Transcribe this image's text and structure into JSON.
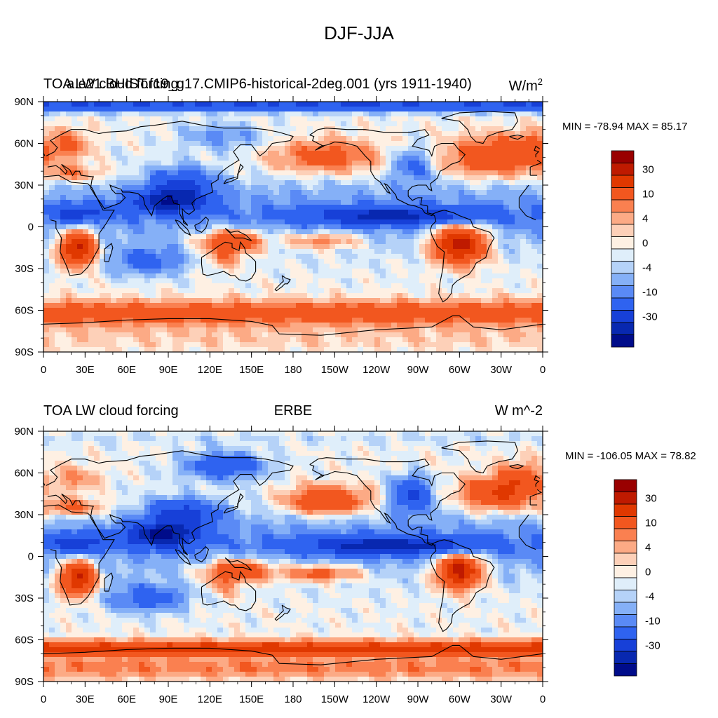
{
  "figure": {
    "title": "DJF-JJA"
  },
  "chart_data": [
    {
      "type": "heatmap",
      "panel_label": "a.e21.BHIST.f19_g17.CMIP6-historical-2deg.001 (yrs 1911-1940)",
      "title_left": "TOA LW cloud forcing",
      "units_base": "W/m",
      "units_power": "2",
      "stats_text": "MIN = -78.94 MAX =  85.17",
      "min": -78.94,
      "max": 85.17,
      "x_ticks": [
        "0",
        "30E",
        "60E",
        "90E",
        "120E",
        "150E",
        "180",
        "150W",
        "120W",
        "90W",
        "60W",
        "30W",
        "0"
      ],
      "y_ticks": [
        "90N",
        "60N",
        "30N",
        "0",
        "30S",
        "60S",
        "90S"
      ],
      "colorbar_labels": [
        "30",
        "10",
        "4",
        "0",
        "-4",
        "-10",
        "-30"
      ],
      "colorbar_colors": [
        "#990000",
        "#bf1a00",
        "#e03800",
        "#f2571f",
        "#fa8050",
        "#fcaa85",
        "#fdd0b8",
        "#fef0e3",
        "#dfeefa",
        "#b5d2f8",
        "#85b0f7",
        "#5a8af5",
        "#2f63f0",
        "#1740d8",
        "#0828b0",
        "#000c8a"
      ],
      "ocean_background": "#4a7cf2",
      "features": [
        {
          "name": "southern-ocean-band",
          "lat": -62,
          "lon": 180,
          "value": 14,
          "sx": 360,
          "sy": 9
        },
        {
          "name": "antarctica",
          "lat": -80,
          "lon": 180,
          "value": 3,
          "sx": 360,
          "sy": 10
        },
        {
          "name": "north-pacific-storm-track",
          "lat": 50,
          "lon": 205,
          "value": 14,
          "sx": 40,
          "sy": 12
        },
        {
          "name": "north-atlantic-storm-track",
          "lat": 50,
          "lon": 320,
          "value": 18,
          "sx": 28,
          "sy": 14
        },
        {
          "name": "north-atlantic-east",
          "lat": 55,
          "lon": 350,
          "value": 14,
          "sx": 18,
          "sy": 12
        },
        {
          "name": "europe",
          "lat": 58,
          "lon": 20,
          "value": 10,
          "sx": 14,
          "sy": 12
        },
        {
          "name": "mediterranean",
          "lat": 38,
          "lon": 20,
          "value": 10,
          "sx": 25,
          "sy": 6
        },
        {
          "name": "tibet-east-asia",
          "lat": 30,
          "lon": 100,
          "value": -18,
          "sx": 22,
          "sy": 12
        },
        {
          "name": "itcz-eastern-pacific",
          "lat": 8,
          "lon": 250,
          "value": -28,
          "sx": 60,
          "sy": 6
        },
        {
          "name": "indian-monsoon",
          "lat": 18,
          "lon": 90,
          "value": -30,
          "sx": 25,
          "sy": 8
        },
        {
          "name": "africa-sahel",
          "lat": 10,
          "lon": 25,
          "value": -20,
          "sx": 18,
          "sy": 6
        },
        {
          "name": "southern-africa",
          "lat": -15,
          "lon": 25,
          "value": 36,
          "sx": 12,
          "sy": 12
        },
        {
          "name": "amazon",
          "lat": -12,
          "lon": 300,
          "value": 38,
          "sx": 18,
          "sy": 13
        },
        {
          "name": "maritime-continent",
          "lat": -10,
          "lon": 135,
          "value": 22,
          "sx": 22,
          "sy": 8
        },
        {
          "name": "south-pacific-convergence",
          "lat": -10,
          "lon": 200,
          "value": 12,
          "sx": 28,
          "sy": 6
        },
        {
          "name": "australia",
          "lat": -22,
          "lon": 130,
          "value": 8,
          "sx": 14,
          "sy": 8
        },
        {
          "name": "southern-indian-ocean",
          "lat": -25,
          "lon": 75,
          "value": -12,
          "sx": 28,
          "sy": 10
        },
        {
          "name": "arctic-cap",
          "lat": 87,
          "lon": 180,
          "value": -22,
          "sx": 360,
          "sy": 4
        },
        {
          "name": "east-siberia",
          "lat": 65,
          "lon": 130,
          "value": -8,
          "sx": 30,
          "sy": 10
        },
        {
          "name": "north-america-interior",
          "lat": 45,
          "lon": 265,
          "value": -12,
          "sx": 14,
          "sy": 12
        }
      ]
    },
    {
      "type": "heatmap",
      "panel_label": "ERBE",
      "title_left": "TOA LW cloud forcing",
      "units_text": "W m^-2",
      "stats_text": "MIN = -106.05 MAX =  78.82",
      "min": -106.05,
      "max": 78.82,
      "x_ticks": [
        "0",
        "30E",
        "60E",
        "90E",
        "120E",
        "150E",
        "180",
        "150W",
        "120W",
        "90W",
        "60W",
        "30W",
        "0"
      ],
      "y_ticks": [
        "90N",
        "60N",
        "30N",
        "0",
        "30S",
        "60S",
        "90S"
      ],
      "colorbar_labels": [
        "30",
        "10",
        "4",
        "0",
        "-4",
        "-10",
        "-30"
      ],
      "colorbar_colors": [
        "#990000",
        "#bf1a00",
        "#e03800",
        "#f2571f",
        "#fa8050",
        "#fcaa85",
        "#fdd0b8",
        "#fef0e3",
        "#dfeefa",
        "#b5d2f8",
        "#85b0f7",
        "#5a8af5",
        "#2f63f0",
        "#1740d8",
        "#0828b0",
        "#000c8a"
      ],
      "ocean_background": "#3a6cf0",
      "features": [
        {
          "name": "southern-ocean-band",
          "lat": -66,
          "lon": 180,
          "value": 24,
          "sx": 360,
          "sy": 5
        },
        {
          "name": "antarctica",
          "lat": -80,
          "lon": 180,
          "value": 9,
          "sx": 360,
          "sy": 8
        },
        {
          "name": "north-pacific-storm-track",
          "lat": 40,
          "lon": 205,
          "value": 20,
          "sx": 30,
          "sy": 10
        },
        {
          "name": "north-atlantic-storm-track",
          "lat": 45,
          "lon": 325,
          "value": 20,
          "sx": 24,
          "sy": 12
        },
        {
          "name": "north-atlantic-east",
          "lat": 55,
          "lon": 345,
          "value": 14,
          "sx": 16,
          "sy": 12
        },
        {
          "name": "europe",
          "lat": 55,
          "lon": 25,
          "value": 8,
          "sx": 16,
          "sy": 10
        },
        {
          "name": "mediterranean",
          "lat": 35,
          "lon": 20,
          "value": 14,
          "sx": 25,
          "sy": 6
        },
        {
          "name": "tibet-east-asia",
          "lat": 30,
          "lon": 100,
          "value": -24,
          "sx": 22,
          "sy": 10
        },
        {
          "name": "itcz-eastern-pacific",
          "lat": 8,
          "lon": 250,
          "value": -30,
          "sx": 60,
          "sy": 6
        },
        {
          "name": "indian-monsoon",
          "lat": 15,
          "lon": 85,
          "value": -36,
          "sx": 25,
          "sy": 8
        },
        {
          "name": "africa-sahel",
          "lat": 10,
          "lon": 25,
          "value": -22,
          "sx": 18,
          "sy": 6
        },
        {
          "name": "southern-africa",
          "lat": -15,
          "lon": 25,
          "value": 34,
          "sx": 12,
          "sy": 12
        },
        {
          "name": "amazon",
          "lat": -10,
          "lon": 300,
          "value": 36,
          "sx": 16,
          "sy": 12
        },
        {
          "name": "maritime-continent",
          "lat": -10,
          "lon": 140,
          "value": 22,
          "sx": 24,
          "sy": 8
        },
        {
          "name": "south-pacific-convergence",
          "lat": -12,
          "lon": 200,
          "value": 16,
          "sx": 28,
          "sy": 6
        },
        {
          "name": "australia",
          "lat": -22,
          "lon": 130,
          "value": 6,
          "sx": 14,
          "sy": 8
        },
        {
          "name": "southern-indian-ocean",
          "lat": -30,
          "lon": 75,
          "value": -14,
          "sx": 28,
          "sy": 10
        },
        {
          "name": "east-siberia",
          "lat": 65,
          "lon": 130,
          "value": -16,
          "sx": 30,
          "sy": 10
        },
        {
          "name": "north-america-interior",
          "lat": 45,
          "lon": 265,
          "value": -20,
          "sx": 14,
          "sy": 12
        },
        {
          "name": "arctic-cap",
          "lat": 85,
          "lon": 180,
          "value": -2,
          "sx": 360,
          "sy": 4
        }
      ]
    }
  ]
}
